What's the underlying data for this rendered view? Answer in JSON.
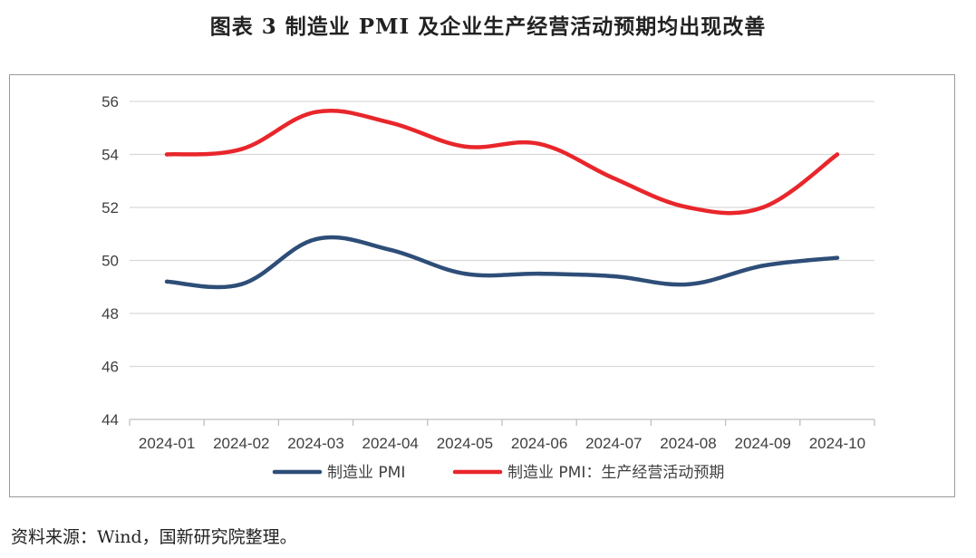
{
  "title": "图表 3  制造业 PMI 及企业生产经营活动预期均出现改善",
  "source": "资料来源：Wind，国新研究院整理。",
  "colors": {
    "pmi": "#2E4E78",
    "expect": "#E8262B",
    "grid": "#D9D9D9",
    "axis": "#BFBFBF",
    "text": "#404040"
  },
  "chart_data": {
    "type": "line",
    "title": "",
    "xlabel": "",
    "ylabel": "",
    "categories": [
      "2024-01",
      "2024-02",
      "2024-03",
      "2024-04",
      "2024-05",
      "2024-06",
      "2024-07",
      "2024-08",
      "2024-09",
      "2024-10"
    ],
    "ylim": [
      44,
      56
    ],
    "yticks": [
      44,
      46,
      48,
      50,
      52,
      54,
      56
    ],
    "grid": true,
    "legend_position": "bottom",
    "series": [
      {
        "name": "制造业 PMI",
        "color": "#2E4E78",
        "values": [
          49.2,
          49.1,
          50.8,
          50.4,
          49.5,
          49.5,
          49.4,
          49.1,
          49.8,
          50.1
        ]
      },
      {
        "name": "制造业 PMI：生产经营活动预期",
        "color": "#E8262B",
        "values": [
          54.0,
          54.2,
          55.6,
          55.2,
          54.3,
          54.4,
          53.1,
          52.0,
          52.0,
          54.0
        ]
      }
    ]
  }
}
